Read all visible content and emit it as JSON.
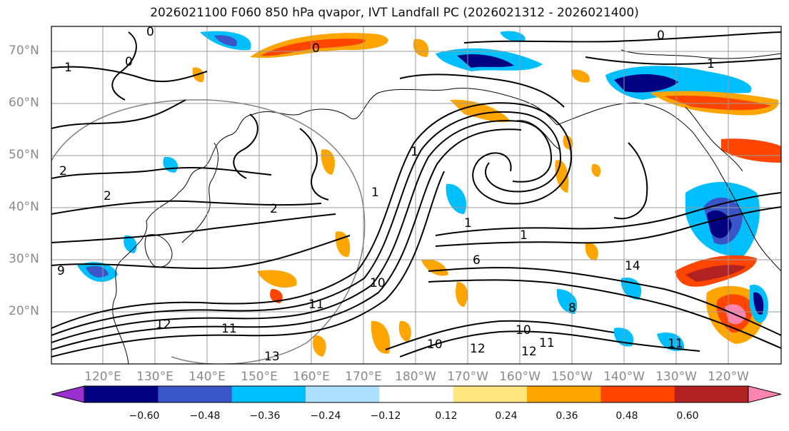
{
  "title": "2026021100 F060 850 hPa qvapor, IVT Landfall PC (2026021312 - 2026021400)",
  "lat_labels": [
    "70°N",
    "60°N",
    "50°N",
    "40°N",
    "30°N",
    "20°N"
  ],
  "lon_labels": [
    "120°E",
    "130°E",
    "140°E",
    "150°E",
    "160°E",
    "170°E",
    "180°W",
    "170°W",
    "160°W",
    "150°W",
    "140°W",
    "130°W",
    "120°W"
  ],
  "colorbar": {
    "ticks": [
      "−0.60",
      "−0.48",
      "−0.36",
      "−0.24",
      "−0.12",
      "0.12",
      "0.24",
      "0.36",
      "0.48",
      "0.60"
    ],
    "colors": [
      "#9b30d0",
      "#000080",
      "#3a55c8",
      "#00bfff",
      "#b0e0ff",
      "#ffffff",
      "#ffe680",
      "#ffa500",
      "#ff4500",
      "#b22222",
      "#ff85b0"
    ]
  },
  "contour_labels": [
    "0",
    "0",
    "0",
    "0",
    "1",
    "1",
    "1",
    "1",
    "1",
    "1",
    "2",
    "2",
    "2",
    "6",
    "8",
    "9",
    "10",
    "10",
    "10",
    "11",
    "11",
    "11",
    "11",
    "12",
    "12",
    "12",
    "13",
    "14"
  ]
}
